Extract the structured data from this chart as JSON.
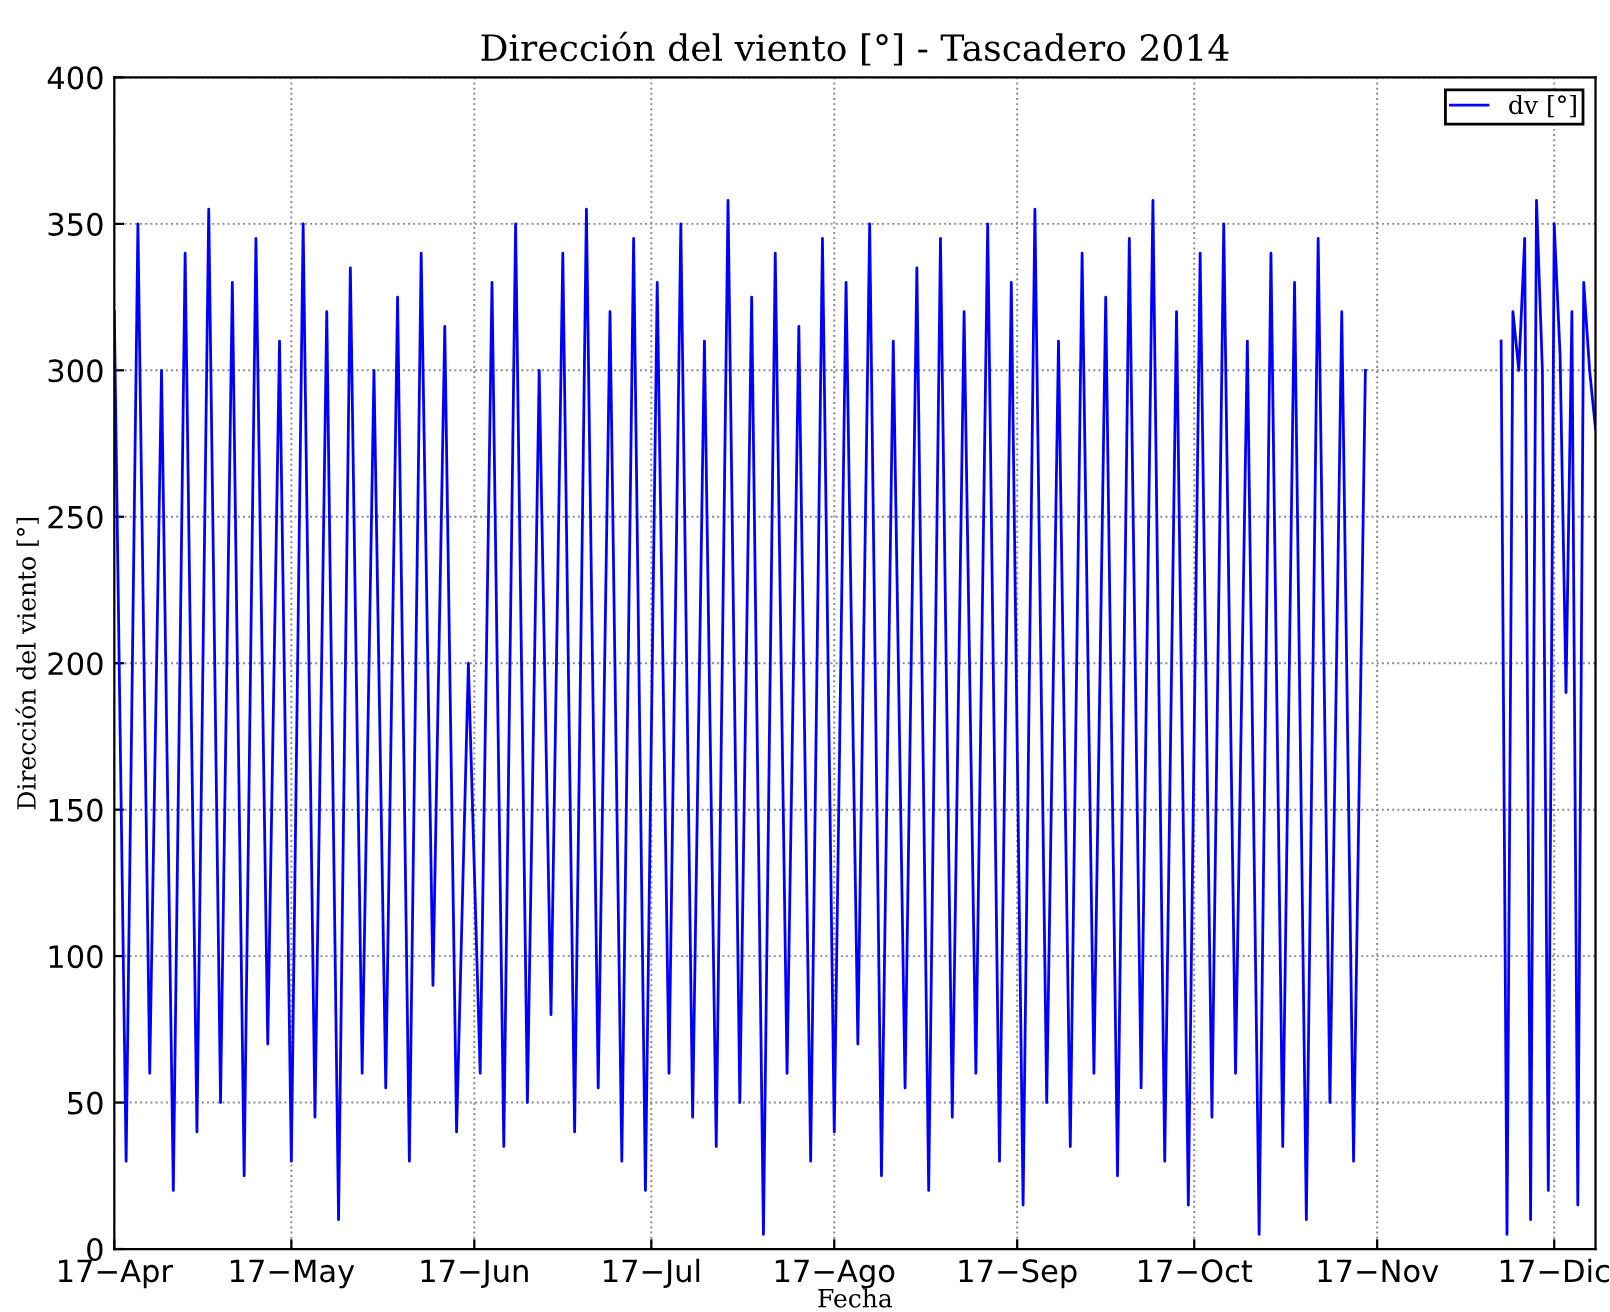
{
  "chart_data": {
    "type": "line",
    "title": "Dirección del viento [°] - Tascadero 2014",
    "xlabel": "Fecha",
    "ylabel": "Dirección del viento [°]",
    "xlim": [
      "2014-04-17",
      "2014-12-24"
    ],
    "ylim": [
      0,
      400
    ],
    "yticks": [
      0,
      50,
      100,
      150,
      200,
      250,
      300,
      350,
      400
    ],
    "xticks": [
      {
        "value": "2014-04-17",
        "label": "17−Apr"
      },
      {
        "value": "2014-05-17",
        "label": "17−May"
      },
      {
        "value": "2014-06-17",
        "label": "17−Jun"
      },
      {
        "value": "2014-07-17",
        "label": "17−Jul"
      },
      {
        "value": "2014-08-17",
        "label": "17−Ago"
      },
      {
        "value": "2014-09-17",
        "label": "17−Sep"
      },
      {
        "value": "2014-10-17",
        "label": "17−Oct"
      },
      {
        "value": "2014-11-17",
        "label": "17−Nov"
      },
      {
        "value": "2014-12-17",
        "label": "17−Dic"
      }
    ],
    "grid": true,
    "legend": "top right",
    "marker": "none",
    "line_style": "solid",
    "x": [
      "2014-04-17",
      "2014-04-19",
      "2014-04-21",
      "2014-04-23",
      "2014-04-25",
      "2014-04-27",
      "2014-04-29",
      "2014-05-01",
      "2014-05-03",
      "2014-05-05",
      "2014-05-07",
      "2014-05-09",
      "2014-05-11",
      "2014-05-13",
      "2014-05-15",
      "2014-05-17",
      "2014-05-19",
      "2014-05-21",
      "2014-05-23",
      "2014-05-25",
      "2014-05-27",
      "2014-05-29",
      "2014-05-31",
      "2014-06-02",
      "2014-06-04",
      "2014-06-06",
      "2014-06-08",
      "2014-06-10",
      "2014-06-12",
      "2014-06-14",
      "2014-06-16",
      "2014-06-18",
      "2014-06-20",
      "2014-06-22",
      "2014-06-24",
      "2014-06-26",
      "2014-06-28",
      "2014-06-30",
      "2014-07-02",
      "2014-07-04",
      "2014-07-06",
      "2014-07-08",
      "2014-07-10",
      "2014-07-12",
      "2014-07-14",
      "2014-07-16",
      "2014-07-18",
      "2014-07-20",
      "2014-07-22",
      "2014-07-24",
      "2014-07-26",
      "2014-07-28",
      "2014-07-30",
      "2014-08-01",
      "2014-08-03",
      "2014-08-05",
      "2014-08-07",
      "2014-08-09",
      "2014-08-11",
      "2014-08-13",
      "2014-08-15",
      "2014-08-17",
      "2014-08-19",
      "2014-08-21",
      "2014-08-23",
      "2014-08-25",
      "2014-08-27",
      "2014-08-29",
      "2014-08-31",
      "2014-09-02",
      "2014-09-04",
      "2014-09-06",
      "2014-09-08",
      "2014-09-10",
      "2014-09-12",
      "2014-09-14",
      "2014-09-16",
      "2014-09-18",
      "2014-09-20",
      "2014-09-22",
      "2014-09-24",
      "2014-09-26",
      "2014-09-28",
      "2014-09-30",
      "2014-10-02",
      "2014-10-04",
      "2014-10-06",
      "2014-10-08",
      "2014-10-10",
      "2014-10-12",
      "2014-10-14",
      "2014-10-16",
      "2014-10-18",
      "2014-10-20",
      "2014-10-22",
      "2014-10-24",
      "2014-10-26",
      "2014-10-28",
      "2014-10-30",
      "2014-11-01",
      "2014-11-03",
      "2014-11-05",
      "2014-11-07",
      "2014-11-09",
      "2014-11-11",
      "2014-11-13",
      "2014-11-15",
      "2014-11-27",
      "2014-12-08",
      "2014-12-09",
      "2014-12-10",
      "2014-12-11",
      "2014-12-12",
      "2014-12-13",
      "2014-12-14",
      "2014-12-15",
      "2014-12-16",
      "2014-12-17",
      "2014-12-18",
      "2014-12-19",
      "2014-12-20",
      "2014-12-21",
      "2014-12-22",
      "2014-12-23",
      "2014-12-24"
    ],
    "series": [
      {
        "name": "dv [°]",
        "color": "#0000ff",
        "values": [
          320,
          30,
          350,
          60,
          300,
          20,
          340,
          40,
          355,
          50,
          330,
          25,
          345,
          70,
          310,
          30,
          350,
          45,
          320,
          10,
          335,
          60,
          300,
          55,
          325,
          30,
          340,
          90,
          315,
          40,
          200,
          60,
          330,
          35,
          350,
          50,
          300,
          80,
          340,
          40,
          355,
          55,
          320,
          30,
          345,
          20,
          330,
          60,
          350,
          45,
          310,
          35,
          358,
          50,
          325,
          5,
          340,
          60,
          315,
          30,
          345,
          40,
          330,
          70,
          350,
          25,
          310,
          55,
          335,
          20,
          345,
          45,
          320,
          60,
          350,
          30,
          330,
          15,
          355,
          50,
          310,
          35,
          340,
          60,
          325,
          25,
          345,
          55,
          358,
          30,
          320,
          15,
          340,
          45,
          350,
          60,
          310,
          5,
          340,
          35,
          330,
          10,
          345,
          50,
          320,
          30,
          300,
          null,
          310,
          5,
          320,
          300,
          345,
          10,
          358,
          300,
          20,
          350,
          305,
          190,
          320,
          15,
          330,
          300,
          280
        ]
      }
    ]
  }
}
